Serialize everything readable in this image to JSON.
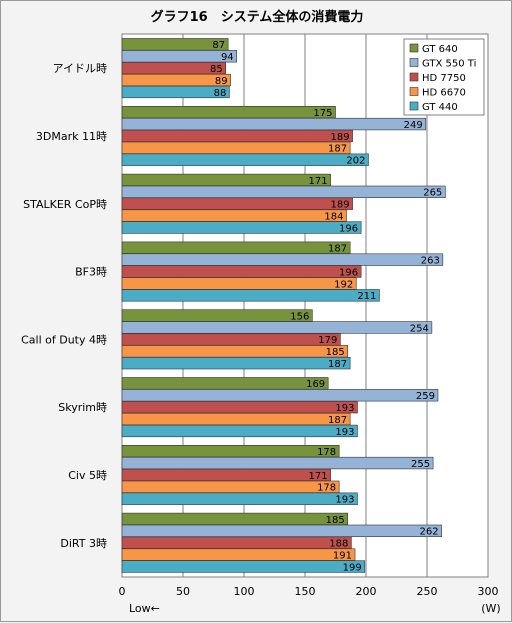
{
  "chart_data": {
    "type": "bar",
    "orientation": "horizontal",
    "title": "グラフ16　システム全体の消費電力",
    "categories": [
      "アイドル時",
      "3DMark 11時",
      "STALKER  CoP時",
      "BF3時",
      "Call of Duty 4時",
      "Skyrim時",
      "Civ 5時",
      "DiRT 3時"
    ],
    "series": [
      {
        "name": "GT 640",
        "color": "#77933c",
        "values": [
          87,
          175,
          171,
          187,
          156,
          169,
          178,
          185
        ]
      },
      {
        "name": "GTX 550 Ti",
        "color": "#95b3d7",
        "values": [
          94,
          249,
          265,
          263,
          254,
          259,
          255,
          262
        ]
      },
      {
        "name": "HD 7750",
        "color": "#c0504d",
        "values": [
          85,
          189,
          189,
          196,
          179,
          193,
          171,
          188
        ]
      },
      {
        "name": "HD 6670",
        "color": "#f79646",
        "values": [
          89,
          187,
          184,
          192,
          185,
          187,
          178,
          191
        ]
      },
      {
        "name": "GT 440",
        "color": "#4bacc6",
        "values": [
          88,
          202,
          196,
          211,
          187,
          193,
          193,
          199
        ]
      }
    ],
    "xlim": [
      0,
      300
    ],
    "xticks": [
      "0",
      "50",
      "100",
      "150",
      "200",
      "250",
      "300"
    ],
    "xunit": "(W)",
    "note": "Low←",
    "grid": "vertical",
    "legend": "top-right"
  }
}
